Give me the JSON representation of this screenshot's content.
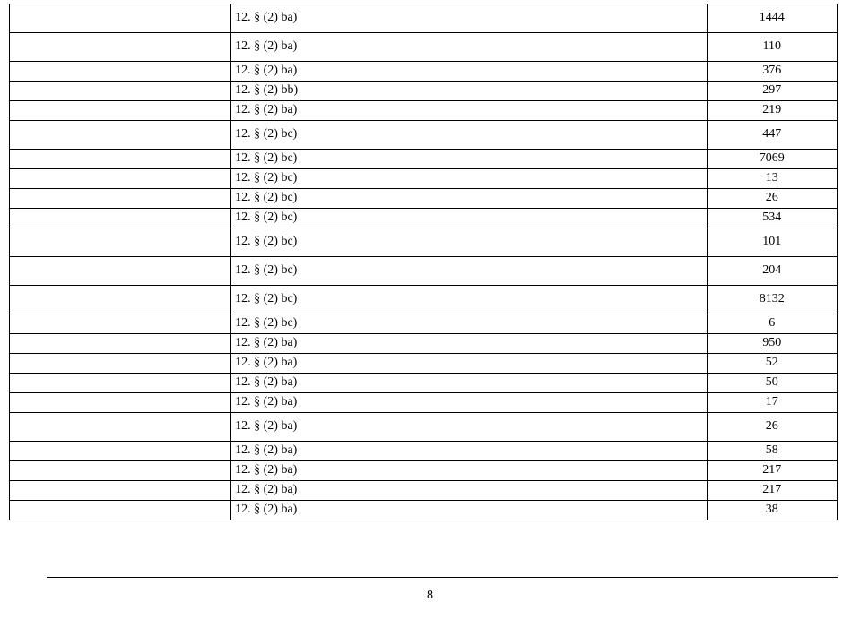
{
  "page_number": "8",
  "rows": [
    {
      "height": "tall",
      "ref": "12. § (2) ba)",
      "val": "1444"
    },
    {
      "height": "tall",
      "ref": "12. § (2) ba)",
      "val": "110"
    },
    {
      "height": "",
      "ref": "12. § (2) ba)",
      "val": "376"
    },
    {
      "height": "",
      "ref": "12. § (2) bb)",
      "val": "297"
    },
    {
      "height": "",
      "ref": "12. § (2) ba)",
      "val": "219"
    },
    {
      "height": "tall",
      "ref": "12. § (2) bc)",
      "val": "447"
    },
    {
      "height": "",
      "ref": "12. § (2) bc)",
      "val": "7069"
    },
    {
      "height": "",
      "ref": "12. § (2) bc)",
      "val": "13"
    },
    {
      "height": "",
      "ref": "12. § (2) bc)",
      "val": "26"
    },
    {
      "height": "",
      "ref": "12. § (2) bc)",
      "val": "534"
    },
    {
      "height": "tall",
      "ref": "12. § (2) bc)",
      "val": "101"
    },
    {
      "height": "tall",
      "ref": "12. § (2) bc)",
      "val": "204"
    },
    {
      "height": "tall",
      "ref": "12. § (2) bc)",
      "val": "8132"
    },
    {
      "height": "",
      "ref": "12. § (2) bc)",
      "val": "6"
    },
    {
      "height": "",
      "ref": "12. § (2) ba)",
      "val": "950"
    },
    {
      "height": "",
      "ref": "12. § (2) ba)",
      "val": "52"
    },
    {
      "height": "",
      "ref": "12. § (2) ba)",
      "val": "50"
    },
    {
      "height": "",
      "ref": "12. § (2) ba)",
      "val": "17"
    },
    {
      "height": "tall",
      "ref": "12. § (2) ba)",
      "val": "26"
    },
    {
      "height": "",
      "ref": "12. § (2) ba)",
      "val": "58"
    },
    {
      "height": "",
      "ref": "12. § (2) ba)",
      "val": "217"
    },
    {
      "height": "",
      "ref": "12. § (2) ba)",
      "val": "217"
    },
    {
      "height": "",
      "ref": "12. § (2) ba)",
      "val": "38"
    }
  ]
}
